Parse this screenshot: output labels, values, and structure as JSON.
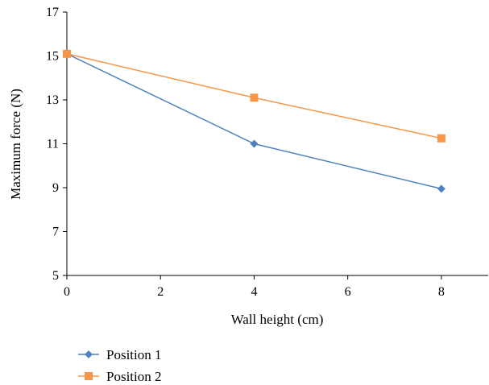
{
  "chart_data": {
    "type": "line",
    "xlabel": "Wall height (cm)",
    "ylabel": "Maximum force (N)",
    "xlim": [
      0,
      9
    ],
    "ylim": [
      5,
      17
    ],
    "x_ticks": [
      "0",
      "2",
      "4",
      "6",
      "8"
    ],
    "y_ticks": [
      "5",
      "7",
      "9",
      "11",
      "13",
      "15",
      "17"
    ],
    "grid": false,
    "legend_position": "bottom-left",
    "series": [
      {
        "name": "Position 1",
        "color": "#4f81bd",
        "marker": "diamond",
        "x": [
          0,
          4,
          8
        ],
        "y": [
          15.1,
          11.0,
          8.95
        ]
      },
      {
        "name": "Position 2",
        "color": "#f79646",
        "marker": "square",
        "x": [
          0,
          4,
          8
        ],
        "y": [
          15.1,
          13.1,
          11.25
        ]
      }
    ]
  }
}
